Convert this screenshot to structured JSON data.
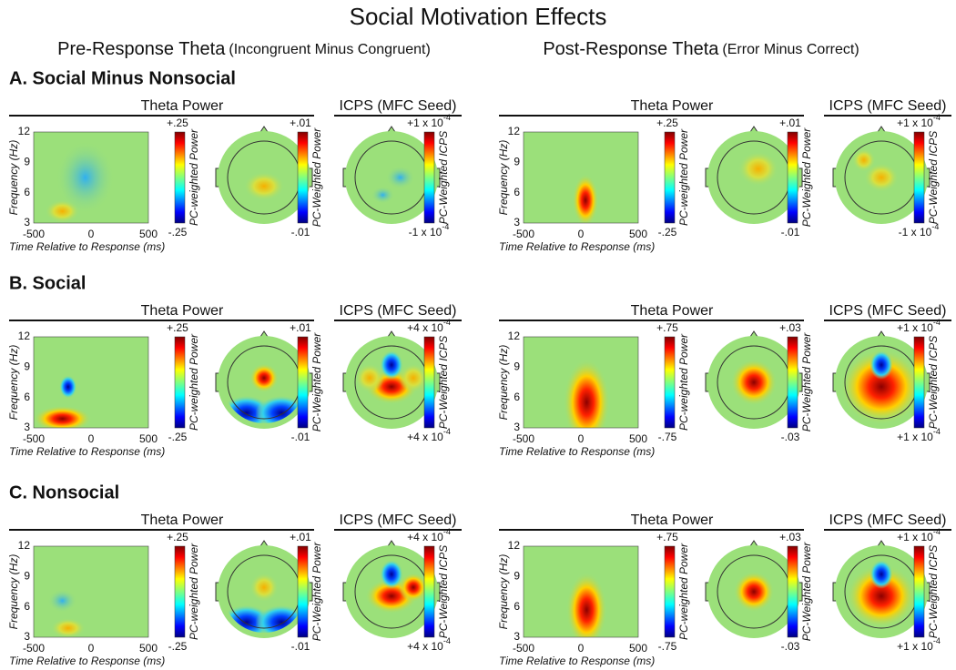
{
  "title": "Social Motivation Effects",
  "columns": [
    {
      "title": "Pre-Response Theta",
      "subtitle": "(Incongruent Minus Congruent)"
    },
    {
      "title": "Post-Response Theta",
      "subtitle": "(Error Minus Correct)"
    }
  ],
  "axes": {
    "y_label": "Frequency (Hz)",
    "x_label": "Time Relative to Response (ms)",
    "yticks": [
      "12",
      "9",
      "6",
      "3"
    ],
    "xticks": [
      "-500",
      "0",
      "500"
    ]
  },
  "rows": [
    {
      "label": "A. Social Minus Nonsocial",
      "panels": [
        {
          "power_title": "Theta Power",
          "icps_title": "ICPS (MFC Seed)",
          "power_cbar": {
            "top": "+.25",
            "bottom": "-.25",
            "label": "PC-weighted Power"
          },
          "topo_cbar": {
            "top": "+.01",
            "bottom": "-.01",
            "label": "PC-Weighted Power"
          },
          "icps_cbar": {
            "top": {
              "base": "+1 x 10",
              "exp": "-4"
            },
            "bottom": {
              "base": "-1 x 10",
              "exp": "-4"
            },
            "label": "PC-Weighted ICPS"
          }
        },
        {
          "power_title": "Theta Power",
          "icps_title": "ICPS (MFC Seed)",
          "power_cbar": {
            "top": "+.25",
            "bottom": "-.25",
            "label": "PC-weighted Power"
          },
          "topo_cbar": {
            "top": "+.01",
            "bottom": "-.01",
            "label": "PC-Weighted Power"
          },
          "icps_cbar": {
            "top": {
              "base": "+1 x 10",
              "exp": "-4"
            },
            "bottom": {
              "base": "-1 x 10",
              "exp": "-4"
            },
            "label": "PC-Weighted ICPS"
          }
        }
      ]
    },
    {
      "label": "B. Social",
      "panels": [
        {
          "power_title": "Theta Power",
          "icps_title": "ICPS (MFC Seed)",
          "power_cbar": {
            "top": "+.25",
            "bottom": "-.25",
            "label": "PC-weighted Power"
          },
          "topo_cbar": {
            "top": "+.01",
            "bottom": "-.01",
            "label": "PC-Weighted Power"
          },
          "icps_cbar": {
            "top": {
              "base": "+4 x 10",
              "exp": "-4"
            },
            "bottom": {
              "base": "+4 x 10",
              "exp": "-4"
            },
            "label": "PC-Weighted ICPS"
          }
        },
        {
          "power_title": "Theta Power",
          "icps_title": "ICPS (MFC Seed)",
          "power_cbar": {
            "top": "+.75",
            "bottom": "-.75",
            "label": "PC-weighted Power"
          },
          "topo_cbar": {
            "top": "+.03",
            "bottom": "-.03",
            "label": "PC-Weighted Power"
          },
          "icps_cbar": {
            "top": {
              "base": "+1 x 10",
              "exp": "-4"
            },
            "bottom": {
              "base": "+1 x 10",
              "exp": "-4"
            },
            "label": "PC-Weighted ICPS"
          }
        }
      ]
    },
    {
      "label": "C. Nonsocial",
      "panels": [
        {
          "power_title": "Theta Power",
          "icps_title": "ICPS (MFC Seed)",
          "power_cbar": {
            "top": "+.25",
            "bottom": "-.25",
            "label": "PC-weighted Power"
          },
          "topo_cbar": {
            "top": "+.01",
            "bottom": "-.01",
            "label": "PC-Weighted Power"
          },
          "icps_cbar": {
            "top": {
              "base": "+4 x 10",
              "exp": "-4"
            },
            "bottom": {
              "base": "+4 x 10",
              "exp": "-4"
            },
            "label": "PC-Weighted ICPS"
          }
        },
        {
          "power_title": "Theta Power",
          "icps_title": "ICPS (MFC Seed)",
          "power_cbar": {
            "top": "+.75",
            "bottom": "-.75",
            "label": "PC-weighted Power"
          },
          "topo_cbar": {
            "top": "+.03",
            "bottom": "-.03",
            "label": "PC-Weighted Power"
          },
          "icps_cbar": {
            "top": {
              "base": "+1 x 10",
              "exp": "-4"
            },
            "bottom": {
              "base": "+1 x 10",
              "exp": "-4"
            },
            "label": "PC-Weighted ICPS"
          }
        }
      ]
    }
  ]
}
